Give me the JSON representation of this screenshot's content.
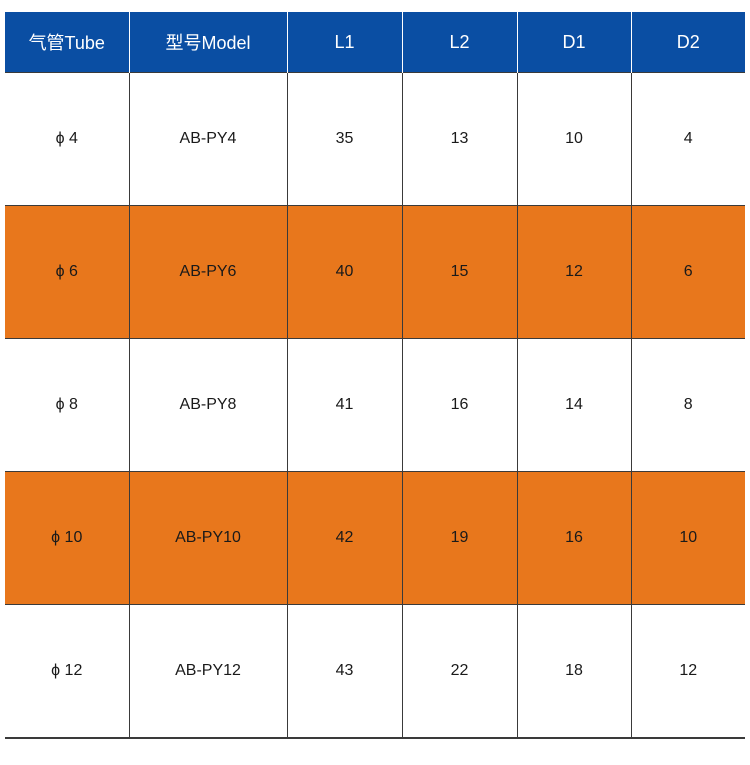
{
  "colors": {
    "header_bg": "#0a4ea3",
    "header_text": "#ffffff",
    "alt_row_bg": "#e8771c",
    "row_bg": "#ffffff",
    "grid_line": "#3a3a3a"
  },
  "table": {
    "headers": [
      "气管Tube",
      "型号Model",
      "L1",
      "L2",
      "D1",
      "D2"
    ],
    "rows": [
      {
        "tube": "ϕ 4",
        "model": "AB-PY4",
        "l1": "35",
        "l2": "13",
        "d1": "10",
        "d2": "4"
      },
      {
        "tube": "ϕ 6",
        "model": "AB-PY6",
        "l1": "40",
        "l2": "15",
        "d1": "12",
        "d2": "6"
      },
      {
        "tube": "ϕ 8",
        "model": "AB-PY8",
        "l1": "41",
        "l2": "16",
        "d1": "14",
        "d2": "8"
      },
      {
        "tube": "ϕ 10",
        "model": "AB-PY10",
        "l1": "42",
        "l2": "19",
        "d1": "16",
        "d2": "10"
      },
      {
        "tube": "ϕ 12",
        "model": "AB-PY12",
        "l1": "43",
        "l2": "22",
        "d1": "18",
        "d2": "12"
      }
    ]
  }
}
